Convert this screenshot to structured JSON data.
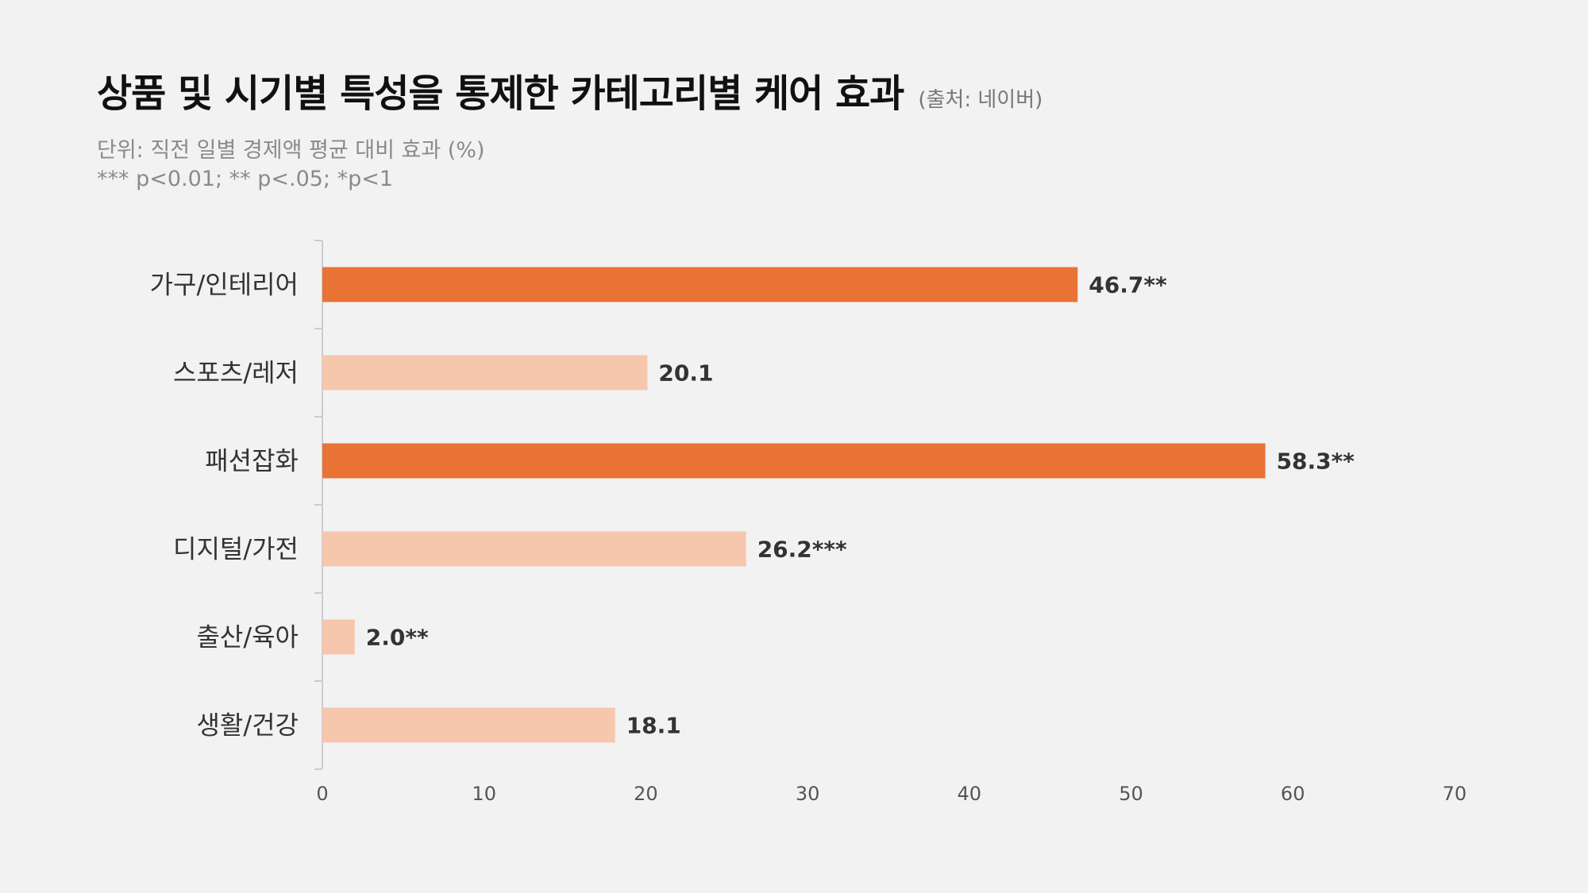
{
  "header": {
    "title": "상품 및 시기별 특성을 통제한 카테고리별 케어 효과",
    "source": "(출처: 네이버)",
    "unit": "단위: 직전 일별 경제액 평균 대비 효과 (%)",
    "significance": "*** p<0.01; ** p<.05; *p<1"
  },
  "colors": {
    "highlight": "#e97235",
    "normal": "#f6c6ad",
    "axis": "#cccccc",
    "label_text": "#333333",
    "tick_text": "#555555"
  },
  "chart_data": {
    "type": "bar",
    "orientation": "horizontal",
    "title": "상품 및 시기별 특성을 통제한 카테고리별 케어 효과",
    "categories": [
      "가구/인테리어",
      "스포츠/레저",
      "패션잡화",
      "디지털/가전",
      "출산/육아",
      "생활/건강"
    ],
    "values": [
      46.7,
      20.1,
      58.3,
      26.2,
      2.0,
      18.1
    ],
    "value_labels": [
      "46.7**",
      "20.1",
      "58.3**",
      "26.2***",
      "2.0**",
      "18.1"
    ],
    "highlighted": [
      true,
      false,
      true,
      false,
      false,
      false
    ],
    "xlim": [
      0,
      70
    ],
    "xticks": [
      0,
      10,
      20,
      30,
      40,
      50,
      60,
      70
    ],
    "xlabel": "",
    "ylabel": "",
    "grid": false,
    "legend": "none"
  }
}
